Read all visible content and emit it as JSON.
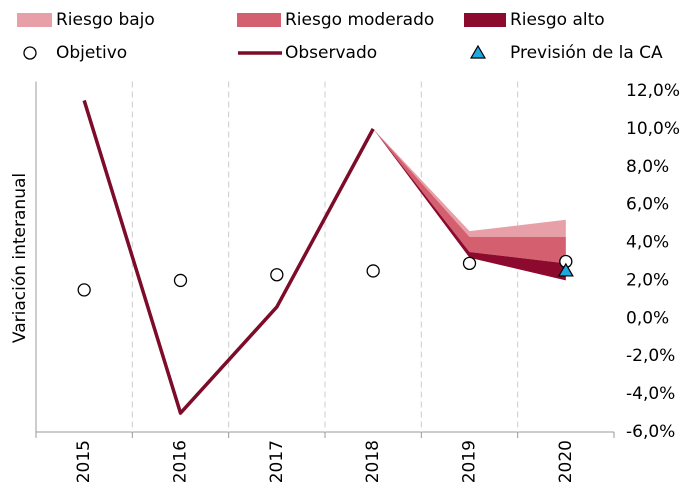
{
  "chart_data": {
    "type": "line",
    "y_axis_label": "Variación interanual",
    "categories": [
      "2015",
      "2016",
      "2017",
      "2018",
      "2019",
      "2020"
    ],
    "ylim": [
      -6,
      12.5
    ],
    "yticks": [
      {
        "value": 12,
        "label": "12,0%"
      },
      {
        "value": 10,
        "label": "10,0%"
      },
      {
        "value": 8,
        "label": "8,0%"
      },
      {
        "value": 6,
        "label": "6,0%"
      },
      {
        "value": 4,
        "label": "4,0%"
      },
      {
        "value": 2,
        "label": "2,0%"
      },
      {
        "value": 0,
        "label": "0,0%"
      },
      {
        "value": -2,
        "label": "-2,0%"
      },
      {
        "value": -4,
        "label": "-4,0%"
      },
      {
        "value": -6,
        "label": "-6,0%"
      }
    ],
    "bands": [
      {
        "name": "Riesgo bajo",
        "color": "#e8a0a8",
        "lower": [
          null,
          null,
          null,
          10.0,
          4.3,
          4.3
        ],
        "upper": [
          null,
          null,
          null,
          10.0,
          4.6,
          5.2
        ]
      },
      {
        "name": "Riesgo moderado",
        "color": "#d45f6e",
        "lower": [
          null,
          null,
          null,
          10.0,
          3.5,
          2.9
        ],
        "upper": [
          null,
          null,
          null,
          10.0,
          4.3,
          4.3
        ]
      },
      {
        "name": "Riesgo alto",
        "color": "#8b0a2e",
        "lower": [
          null,
          null,
          null,
          10.0,
          3.2,
          2.0
        ],
        "upper": [
          null,
          null,
          null,
          10.0,
          3.5,
          2.9
        ]
      }
    ],
    "series": [
      {
        "name": "Objetivo",
        "kind": "marker-circle",
        "color": "#ffffff",
        "values": [
          1.5,
          2.0,
          2.3,
          2.5,
          2.9,
          3.0
        ]
      },
      {
        "name": "Observado",
        "kind": "line",
        "color": "#7d0b2a",
        "values": [
          11.5,
          -5.0,
          0.6,
          10.0,
          null,
          null
        ]
      },
      {
        "name": "Previsión de la CA",
        "kind": "marker-triangle",
        "color": "#1fa8df",
        "values": [
          null,
          null,
          null,
          null,
          null,
          2.5
        ]
      }
    ]
  }
}
